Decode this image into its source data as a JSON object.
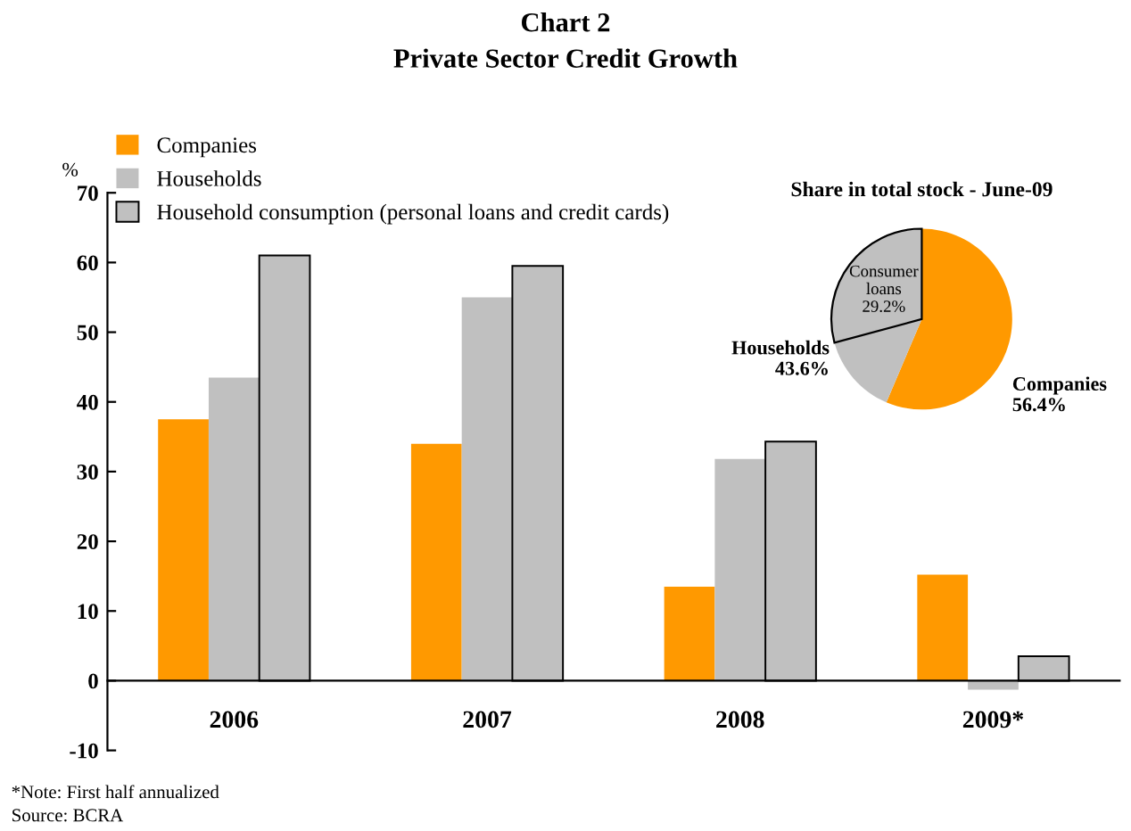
{
  "chart_data": [
    {
      "type": "bar",
      "title": "Chart 2\nPrivate Sector Credit Growth",
      "ylabel": "%",
      "categories": [
        "2006",
        "2007",
        "2008",
        "2009*"
      ],
      "series": [
        {
          "name": "Companies",
          "color": "#ff9900",
          "values": [
            37.5,
            34,
            13.5,
            15.2
          ]
        },
        {
          "name": "Households",
          "color": "#c0c0c0",
          "values": [
            43.5,
            55,
            31.8,
            -1.3
          ]
        },
        {
          "name": "Household consumption (personal loans and credit cards)",
          "color": "#c0c0c0",
          "values": [
            61,
            59.5,
            34.3,
            3.5
          ]
        }
      ],
      "ylim": [
        -10,
        70
      ],
      "yticks": [
        -10,
        0,
        10,
        20,
        30,
        40,
        50,
        60,
        70
      ],
      "grid": false,
      "legend": "top left",
      "annotations": [
        "*Note: First half annualized",
        "Source: BCRA"
      ]
    },
    {
      "type": "pie",
      "title": "Share in total stock - June-09",
      "categories": [
        "Companies",
        "Households",
        "Consumer loans"
      ],
      "values": [
        56.4,
        14.4,
        29.2
      ],
      "colors": [
        "#ff9900",
        "#c0c0c0",
        "#c0c0c0"
      ],
      "annotations": [
        "56.4%",
        "43.6%",
        "29.2%"
      ]
    }
  ]
}
